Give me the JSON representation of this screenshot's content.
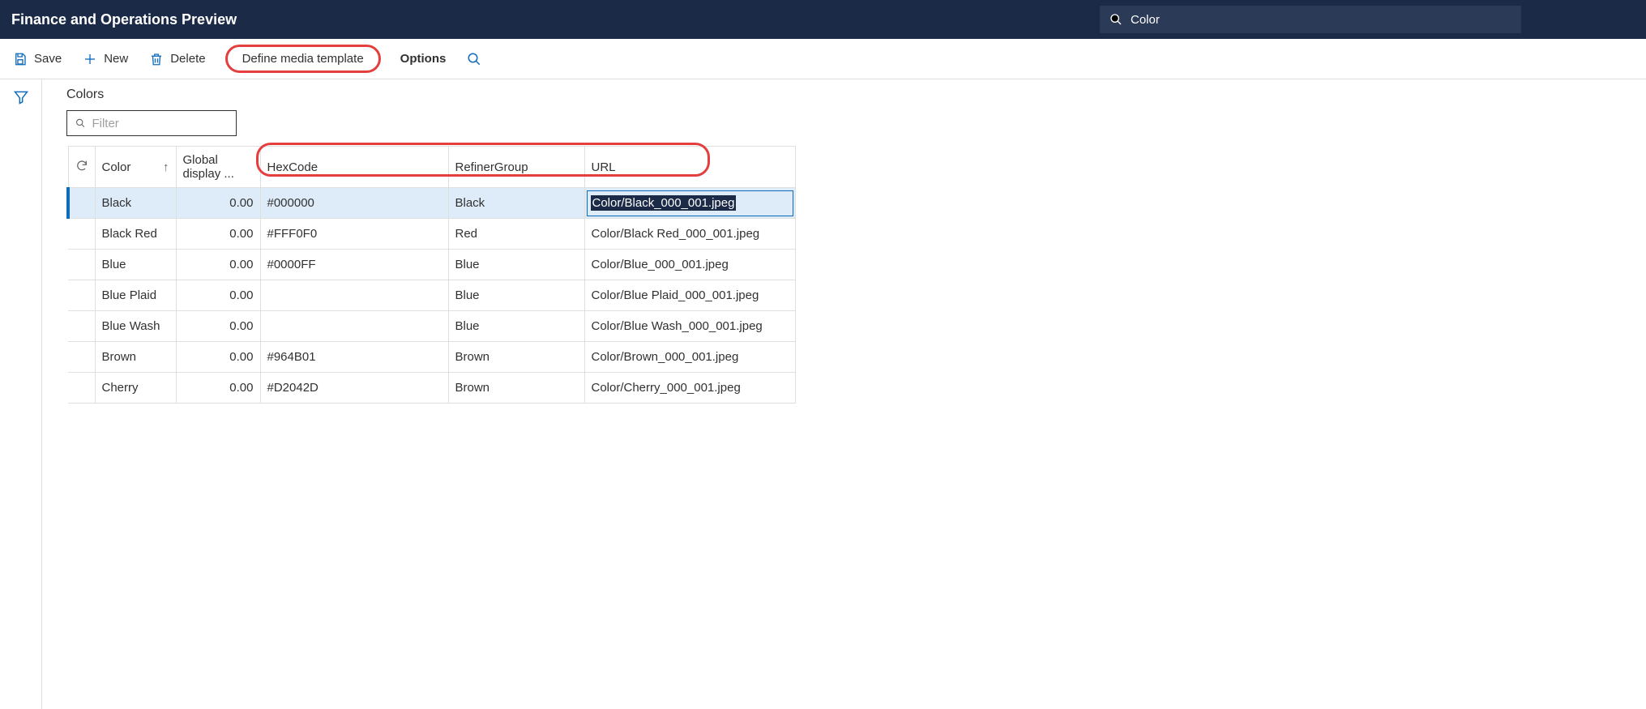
{
  "header": {
    "title": "Finance and Operations Preview",
    "search_value": "Color"
  },
  "actions": {
    "save": "Save",
    "new": "New",
    "delete": "Delete",
    "define_media_template": "Define media template",
    "options": "Options"
  },
  "page": {
    "title": "Colors",
    "filter_placeholder": "Filter"
  },
  "table": {
    "columns": {
      "color": "Color",
      "global_display": "Global display ...",
      "hexcode": "HexCode",
      "refiner_group": "RefinerGroup",
      "url": "URL"
    },
    "sort_indicator": "↑",
    "rows": [
      {
        "selected": true,
        "color": "Black",
        "display": "0.00",
        "hex": "#000000",
        "refiner": "Black",
        "url": "Color/Black_000_001.jpeg",
        "url_selected": true
      },
      {
        "selected": false,
        "color": "Black Red",
        "display": "0.00",
        "hex": "#FFF0F0",
        "refiner": "Red",
        "url": "Color/Black Red_000_001.jpeg",
        "url_selected": false
      },
      {
        "selected": false,
        "color": "Blue",
        "display": "0.00",
        "hex": "#0000FF",
        "refiner": "Blue",
        "url": "Color/Blue_000_001.jpeg",
        "url_selected": false
      },
      {
        "selected": false,
        "color": "Blue Plaid",
        "display": "0.00",
        "hex": "",
        "refiner": "Blue",
        "url": "Color/Blue Plaid_000_001.jpeg",
        "url_selected": false
      },
      {
        "selected": false,
        "color": "Blue Wash",
        "display": "0.00",
        "hex": "",
        "refiner": "Blue",
        "url": "Color/Blue Wash_000_001.jpeg",
        "url_selected": false
      },
      {
        "selected": false,
        "color": "Brown",
        "display": "0.00",
        "hex": "#964B01",
        "refiner": "Brown",
        "url": "Color/Brown_000_001.jpeg",
        "url_selected": false
      },
      {
        "selected": false,
        "color": "Cherry",
        "display": "0.00",
        "hex": "#D2042D",
        "refiner": "Brown",
        "url": "Color/Cherry_000_001.jpeg",
        "url_selected": false
      }
    ]
  },
  "colors": {
    "header_bg": "#1a2a47",
    "accent": "#0f6cbd",
    "highlight_row": "#deecf9",
    "annotation": "#e43e3e",
    "border": "#e1dfdd"
  }
}
